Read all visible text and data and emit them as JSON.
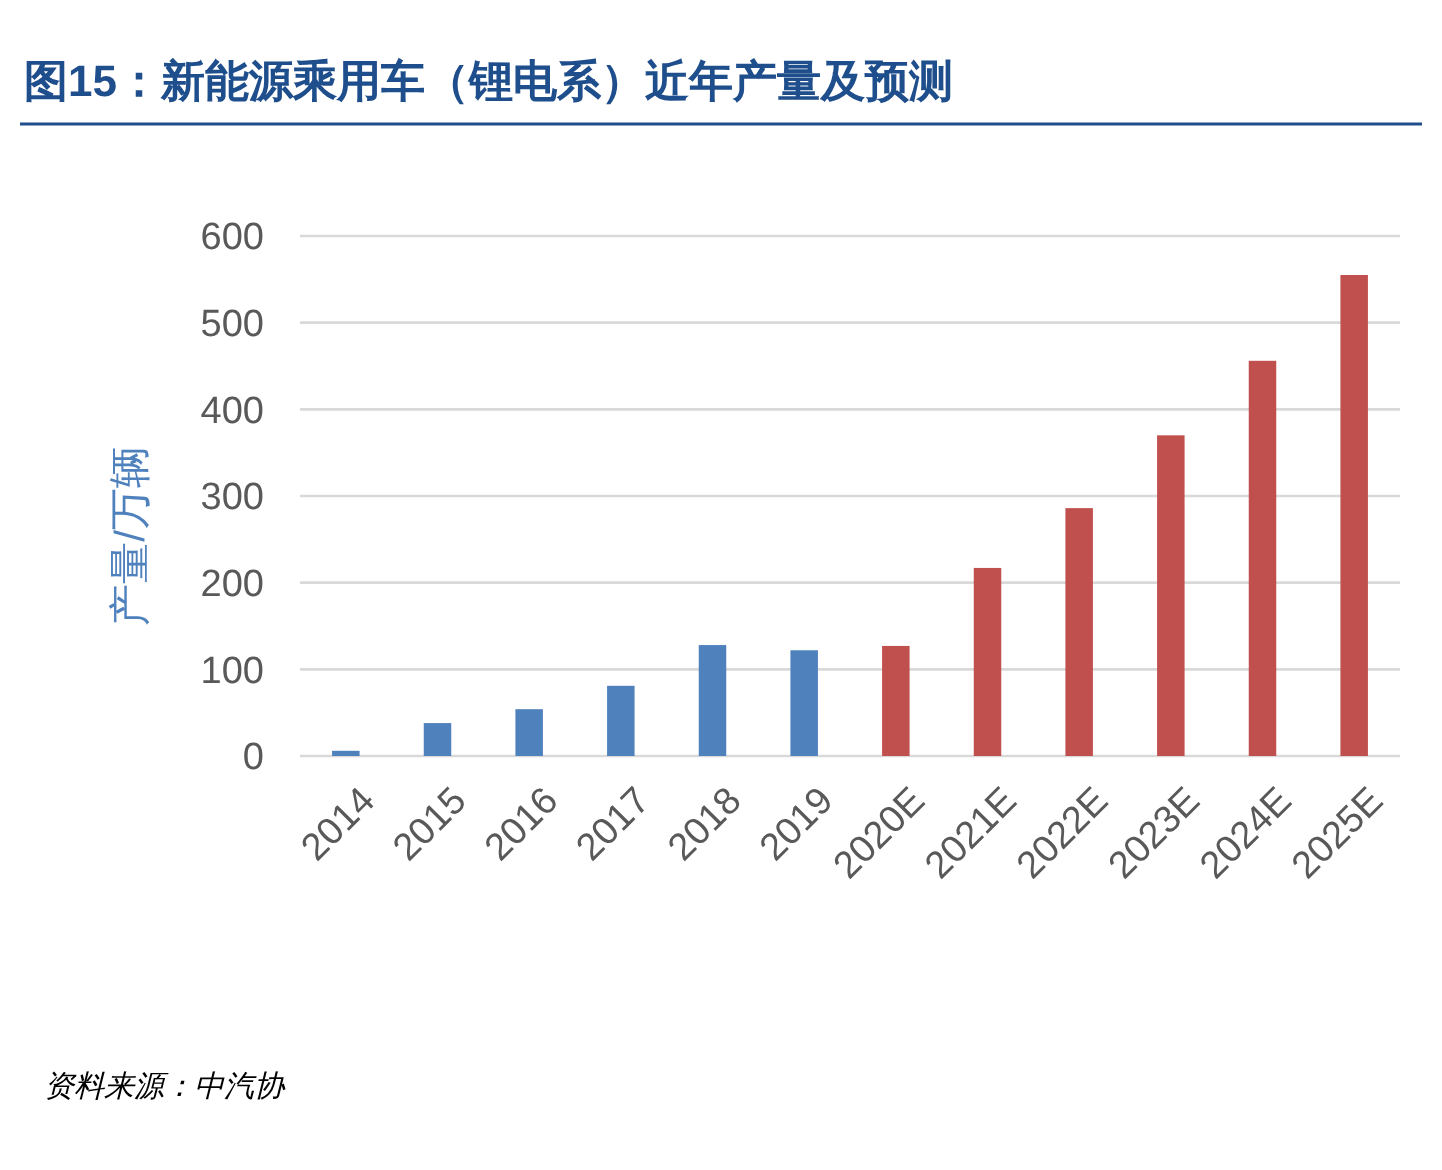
{
  "chart_data": {
    "type": "bar",
    "title": "图15：新能源乘用车（锂电系）近年产量及预测",
    "ylabel": "产量/万辆",
    "categories": [
      "2014",
      "2015",
      "2016",
      "2017",
      "2018",
      "2019",
      "2020E",
      "2021E",
      "2022E",
      "2023E",
      "2024E",
      "2025E"
    ],
    "values": [
      6,
      38,
      54,
      81,
      128,
      122,
      127,
      217,
      286,
      370,
      456,
      555
    ],
    "colors": [
      "#4f81bd",
      "#4f81bd",
      "#4f81bd",
      "#4f81bd",
      "#4f81bd",
      "#4f81bd",
      "#c0504d",
      "#c0504d",
      "#c0504d",
      "#c0504d",
      "#c0504d",
      "#c0504d"
    ],
    "ylim": [
      0,
      600
    ],
    "yticks": [
      0,
      100,
      200,
      300,
      400,
      500,
      600
    ],
    "grid": "y",
    "annotations": [
      "资料来源：中汽协"
    ]
  }
}
